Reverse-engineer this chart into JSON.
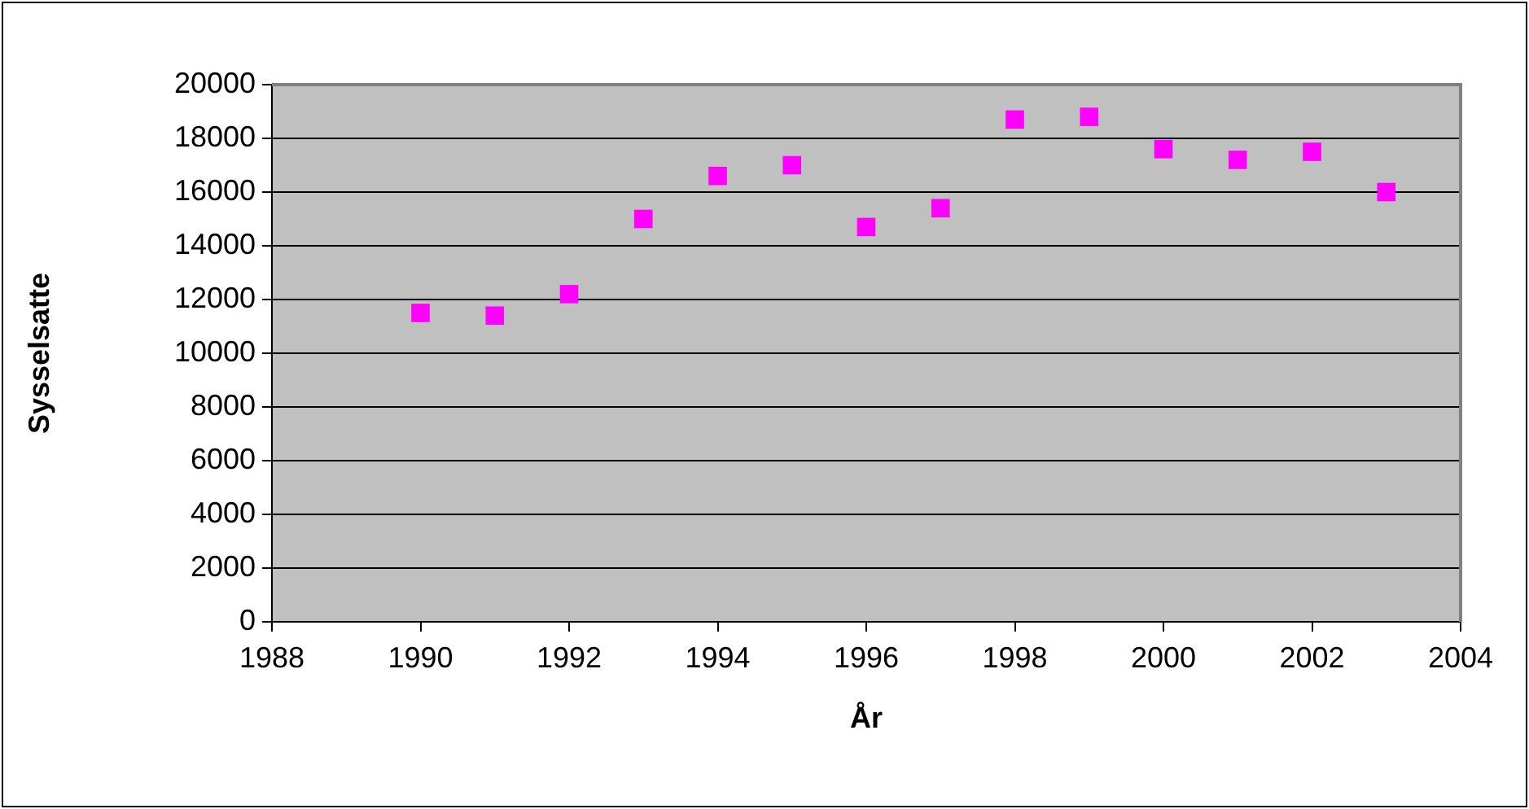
{
  "chart_data": {
    "type": "scatter",
    "xlabel": "År",
    "ylabel": "Sysselsatte",
    "x": [
      1990,
      1991,
      1992,
      1993,
      1994,
      1995,
      1996,
      1997,
      1998,
      1999,
      2000,
      2001,
      2002,
      2003
    ],
    "series": [
      {
        "color": "#ff00ff",
        "values": [
          11500,
          11400,
          12200,
          15000,
          16600,
          17000,
          14700,
          15400,
          18700,
          18800,
          17600,
          17200,
          17500,
          16000
        ]
      }
    ],
    "xlim": [
      1988,
      2004
    ],
    "xticks": [
      1988,
      1990,
      1992,
      1994,
      1996,
      1998,
      2000,
      2002,
      2004
    ],
    "ylim": [
      0,
      20000
    ],
    "yticks": [
      0,
      2000,
      4000,
      6000,
      8000,
      10000,
      12000,
      14000,
      16000,
      18000,
      20000
    ],
    "grid": "y",
    "legend": false,
    "marker": "square"
  }
}
